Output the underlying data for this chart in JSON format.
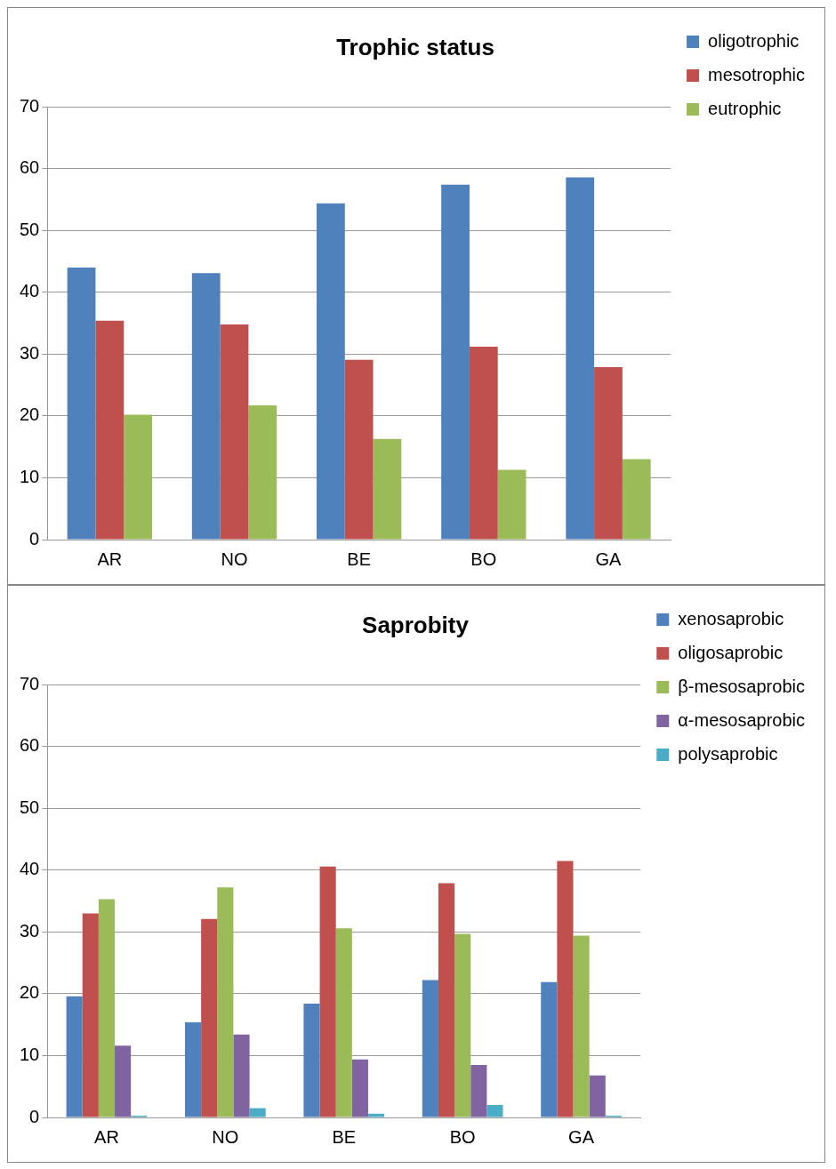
{
  "chart_data": [
    {
      "type": "bar",
      "title": "Trophic status",
      "categories": [
        "AR",
        "NO",
        "BE",
        "BO",
        "GA"
      ],
      "series": [
        {
          "name": "oligotrophic",
          "color": "#4f81bd",
          "values": [
            44.0,
            43.1,
            54.4,
            57.4,
            58.6
          ]
        },
        {
          "name": "mesotrophic",
          "color": "#c0504d",
          "values": [
            35.4,
            34.8,
            29.1,
            31.2,
            27.9
          ]
        },
        {
          "name": "eutrophic",
          "color": "#9bbb59",
          "values": [
            20.2,
            21.7,
            16.3,
            11.3,
            13.0
          ]
        }
      ],
      "ylim": [
        0,
        70
      ],
      "yticks": [
        0,
        10,
        20,
        30,
        40,
        50,
        60,
        70
      ],
      "grid": "y",
      "legend": "right"
    },
    {
      "type": "bar",
      "title": "Saprobity",
      "categories": [
        "AR",
        "NO",
        "BE",
        "BO",
        "GA"
      ],
      "series": [
        {
          "name": "xenosaprobic",
          "color": "#4f81bd",
          "values": [
            19.6,
            15.4,
            18.4,
            22.2,
            21.9
          ]
        },
        {
          "name": "oligosaprobic",
          "color": "#c0504d",
          "values": [
            33.0,
            32.1,
            40.6,
            37.9,
            41.5
          ]
        },
        {
          "name": "β-mesosaprobic",
          "color": "#9bbb59",
          "values": [
            35.3,
            37.2,
            30.6,
            29.7,
            29.4
          ]
        },
        {
          "name": "α-mesosaprobic",
          "color": "#8064a2",
          "values": [
            11.6,
            13.4,
            9.4,
            8.5,
            6.8
          ]
        },
        {
          "name": "polysaprobic",
          "color": "#4bacc6",
          "values": [
            0.3,
            1.5,
            0.6,
            2.0,
            0.3
          ]
        }
      ],
      "ylim": [
        0,
        70
      ],
      "yticks": [
        0,
        10,
        20,
        30,
        40,
        50,
        60,
        70
      ],
      "grid": "y",
      "legend": "right"
    }
  ]
}
